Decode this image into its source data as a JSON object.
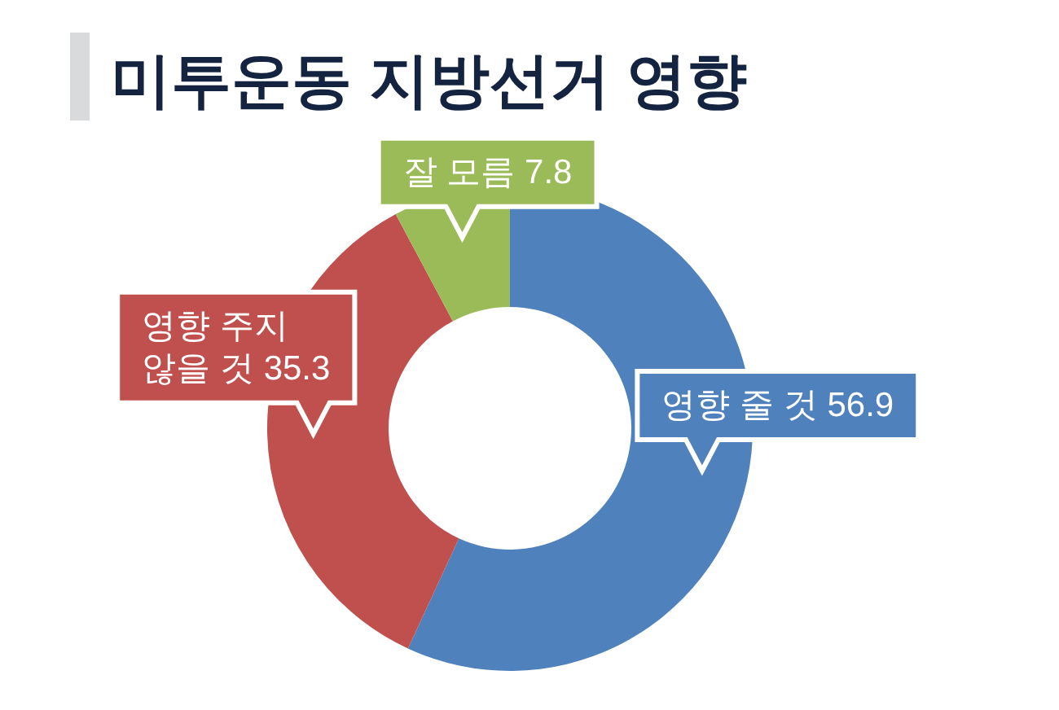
{
  "chart_data": {
    "type": "donut",
    "title": "미투운동 지방선거 영향",
    "categories": [
      "영향 줄 것",
      "영향 주지 않을 것",
      "잘 모름"
    ],
    "values": [
      56.9,
      35.3,
      7.8
    ],
    "colors": [
      "#4f81bd",
      "#c0504d",
      "#9bbb59"
    ],
    "data_labels": true
  }
}
